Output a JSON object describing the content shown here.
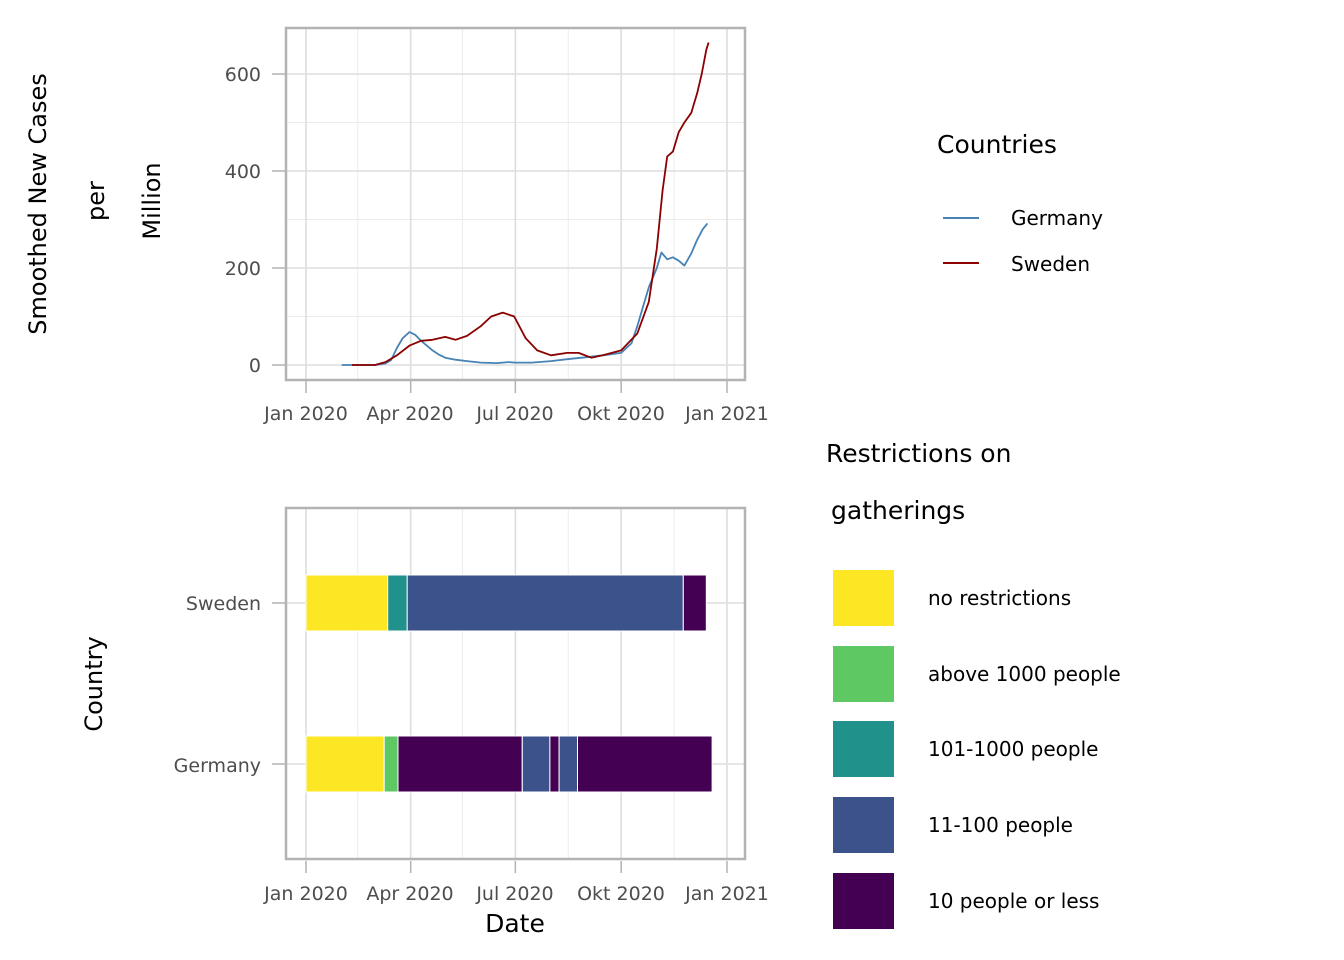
{
  "top_plot": {
    "ylabel_lines": [
      "Smoothed New Cases",
      "per",
      "Million"
    ],
    "x_ticks": [
      "Jan 2020",
      "Apr 2020",
      "Jul 2020",
      "Okt 2020",
      "Jan 2021"
    ],
    "y_ticks": [
      "0",
      "200",
      "400",
      "600"
    ]
  },
  "bottom_plot": {
    "ylabel": "Country",
    "xlabel": "Date",
    "x_ticks": [
      "Jan 2020",
      "Apr 2020",
      "Jul 2020",
      "Okt 2020",
      "Jan 2021"
    ],
    "y_ticks": [
      "Germany",
      "Sweden"
    ]
  },
  "legend_countries": {
    "title": "Countries",
    "items": [
      {
        "label": "Germany",
        "color": "#4682b4"
      },
      {
        "label": "Sweden",
        "color": "#8b0000"
      }
    ]
  },
  "legend_restrictions": {
    "title_lines": [
      "Restrictions on",
      "gatherings"
    ],
    "items": [
      {
        "label": "no restrictions",
        "color": "#fde725"
      },
      {
        "label": "above 1000 people",
        "color": "#5ec962"
      },
      {
        "label": "101-1000 people",
        "color": "#21918c"
      },
      {
        "label": "11-100 people",
        "color": "#3b528b"
      },
      {
        "label": "10 people or less",
        "color": "#440154"
      }
    ]
  },
  "chart_data": [
    {
      "type": "line",
      "ylabel": "Smoothed New Cases per Million",
      "xlim": [
        "2019-12-16",
        "2021-01-16"
      ],
      "ylim": [
        -30,
        700
      ],
      "grid": true,
      "legend_position": "right",
      "series": [
        {
          "name": "Germany",
          "color": "#4682b4",
          "points": [
            [
              "2020-02-01",
              0
            ],
            [
              "2020-03-01",
              0
            ],
            [
              "2020-03-10",
              3
            ],
            [
              "2020-03-15",
              10
            ],
            [
              "2020-03-20",
              35
            ],
            [
              "2020-03-25",
              55
            ],
            [
              "2020-03-31",
              68
            ],
            [
              "2020-04-05",
              62
            ],
            [
              "2020-04-10",
              50
            ],
            [
              "2020-04-15",
              40
            ],
            [
              "2020-04-20",
              30
            ],
            [
              "2020-04-25",
              22
            ],
            [
              "2020-05-01",
              15
            ],
            [
              "2020-05-10",
              11
            ],
            [
              "2020-05-20",
              8
            ],
            [
              "2020-06-01",
              5
            ],
            [
              "2020-06-15",
              4
            ],
            [
              "2020-06-25",
              6
            ],
            [
              "2020-07-01",
              5
            ],
            [
              "2020-07-15",
              5
            ],
            [
              "2020-08-01",
              8
            ],
            [
              "2020-08-15",
              12
            ],
            [
              "2020-09-01",
              16
            ],
            [
              "2020-09-15",
              20
            ],
            [
              "2020-10-01",
              25
            ],
            [
              "2020-10-10",
              45
            ],
            [
              "2020-10-15",
              80
            ],
            [
              "2020-10-20",
              120
            ],
            [
              "2020-10-25",
              160
            ],
            [
              "2020-11-01",
              200
            ],
            [
              "2020-11-05",
              232
            ],
            [
              "2020-11-10",
              218
            ],
            [
              "2020-11-15",
              222
            ],
            [
              "2020-11-20",
              215
            ],
            [
              "2020-11-25",
              205
            ],
            [
              "2020-12-01",
              230
            ],
            [
              "2020-12-06",
              258
            ],
            [
              "2020-12-11",
              280
            ],
            [
              "2020-12-15",
              292
            ]
          ]
        },
        {
          "name": "Sweden",
          "color": "#8b0000",
          "points": [
            [
              "2020-02-10",
              0
            ],
            [
              "2020-03-01",
              0
            ],
            [
              "2020-03-10",
              6
            ],
            [
              "2020-03-20",
              20
            ],
            [
              "2020-03-31",
              40
            ],
            [
              "2020-04-10",
              50
            ],
            [
              "2020-04-20",
              52
            ],
            [
              "2020-05-01",
              58
            ],
            [
              "2020-05-10",
              52
            ],
            [
              "2020-05-20",
              60
            ],
            [
              "2020-06-01",
              80
            ],
            [
              "2020-06-10",
              100
            ],
            [
              "2020-06-20",
              108
            ],
            [
              "2020-06-30",
              100
            ],
            [
              "2020-07-10",
              55
            ],
            [
              "2020-07-20",
              30
            ],
            [
              "2020-08-01",
              20
            ],
            [
              "2020-08-15",
              25
            ],
            [
              "2020-08-25",
              25
            ],
            [
              "2020-09-05",
              15
            ],
            [
              "2020-09-15",
              20
            ],
            [
              "2020-10-01",
              30
            ],
            [
              "2020-10-15",
              65
            ],
            [
              "2020-10-25",
              130
            ],
            [
              "2020-11-01",
              240
            ],
            [
              "2020-11-06",
              360
            ],
            [
              "2020-11-10",
              430
            ],
            [
              "2020-11-15",
              440
            ],
            [
              "2020-11-20",
              480
            ],
            [
              "2020-11-25",
              500
            ],
            [
              "2020-12-01",
              520
            ],
            [
              "2020-12-06",
              560
            ],
            [
              "2020-12-10",
              600
            ],
            [
              "2020-12-14",
              650
            ],
            [
              "2020-12-16",
              665
            ]
          ]
        }
      ]
    },
    {
      "type": "bar",
      "orientation": "horizontal",
      "xlabel": "Date",
      "ylabel": "Country",
      "xlim": [
        "2019-12-16",
        "2021-01-16"
      ],
      "categories": [
        "Germany",
        "Sweden"
      ],
      "legend_position": "right",
      "segments": [
        {
          "country": "Sweden",
          "start": "2020-01-01",
          "end": "2020-03-12",
          "level": "no restrictions",
          "color": "#fde725"
        },
        {
          "country": "Sweden",
          "start": "2020-03-12",
          "end": "2020-03-29",
          "level": "101-1000 people",
          "color": "#21918c"
        },
        {
          "country": "Sweden",
          "start": "2020-03-29",
          "end": "2020-11-24",
          "level": "11-100 people",
          "color": "#3b528b"
        },
        {
          "country": "Sweden",
          "start": "2020-11-24",
          "end": "2020-12-14",
          "level": "10 people or less",
          "color": "#440154"
        },
        {
          "country": "Germany",
          "start": "2020-01-01",
          "end": "2020-03-09",
          "level": "no restrictions",
          "color": "#fde725"
        },
        {
          "country": "Germany",
          "start": "2020-03-09",
          "end": "2020-03-21",
          "level": "above 1000 people",
          "color": "#5ec962"
        },
        {
          "country": "Germany",
          "start": "2020-03-21",
          "end": "2020-07-07",
          "level": "10 people or less",
          "color": "#440154"
        },
        {
          "country": "Germany",
          "start": "2020-07-07",
          "end": "2020-07-31",
          "level": "11-100 people",
          "color": "#3b528b"
        },
        {
          "country": "Germany",
          "start": "2020-07-31",
          "end": "2020-08-08",
          "level": "10 people or less",
          "color": "#440154"
        },
        {
          "country": "Germany",
          "start": "2020-08-08",
          "end": "2020-08-24",
          "level": "11-100 people",
          "color": "#3b528b"
        },
        {
          "country": "Germany",
          "start": "2020-08-24",
          "end": "2020-12-19",
          "level": "10 people or less",
          "color": "#440154"
        }
      ]
    }
  ]
}
